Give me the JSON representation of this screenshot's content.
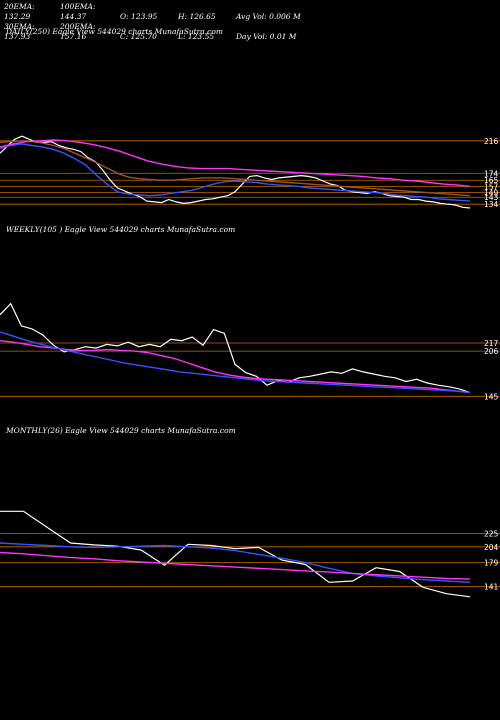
{
  "stats": {
    "ema20": "20EMA: 132.29",
    "ema100": "100EMA: 144.37",
    "open": "O: 123.95",
    "high": "H: 126.65",
    "avg_vol": "Avg Vol: 0.006  M",
    "ema30": "30EMA: 137.93",
    "ema200": "200EMA: 157.16",
    "close": "C: 125.70",
    "low": "L: 123.55",
    "day_vol": "Day Vol: 0.01  M"
  },
  "colors": {
    "background": "#000000",
    "price": "#ffffff",
    "ema_blue": "#3355ff",
    "ema_magenta": "#ff33ff",
    "ema_brown": "#a0522d",
    "level_line": "#cc6600"
  },
  "chart_data": [
    {
      "type": "line",
      "title": "DAILY(250) Eagle  View  544029 charts MunafaSutra.com",
      "levels": [
        216,
        174,
        165,
        157,
        149,
        143,
        134
      ],
      "level_labels": [
        "216",
        "174",
        "165",
        "157",
        "149",
        "143",
        "134"
      ],
      "series": [
        {
          "values": [
            200,
            209,
            218,
            222,
            218,
            214,
            214,
            215,
            210,
            207,
            205,
            202,
            194,
            189,
            178,
            165,
            155,
            151,
            147,
            144,
            138,
            137,
            136,
            140,
            137,
            135,
            136,
            138,
            140,
            141,
            143,
            145,
            150,
            160,
            170,
            171,
            168,
            166,
            168,
            169,
            170,
            171,
            170,
            168,
            164,
            160,
            158,
            152,
            150,
            149,
            148,
            150,
            148,
            145,
            144,
            143,
            140,
            140,
            138,
            137,
            135,
            134,
            133,
            130,
            129
          ]
        },
        {
          "values": [
            206,
            210,
            212,
            210,
            208,
            205,
            200,
            193,
            185,
            172,
            160,
            150,
            147,
            146,
            145,
            146,
            148,
            150,
            152,
            156,
            160,
            163,
            164,
            163,
            162,
            160,
            159,
            158,
            157,
            155,
            154,
            153,
            152,
            151,
            150,
            149,
            148,
            146,
            145,
            144,
            143,
            141,
            140,
            139,
            138
          ]
        },
        {
          "values": [
            214,
            215,
            216,
            215,
            213,
            210,
            206,
            200,
            194,
            188,
            181,
            174,
            169,
            167,
            166,
            165,
            165,
            166,
            167,
            168,
            168,
            168,
            167,
            166,
            165,
            164,
            163,
            162,
            161,
            160,
            159,
            158,
            157,
            156,
            155,
            154,
            153,
            152,
            151,
            150,
            149,
            148,
            147,
            146,
            145
          ]
        },
        {
          "values": [
            208,
            212,
            215,
            216,
            217,
            216,
            214,
            211,
            207,
            202,
            196,
            190,
            186,
            183,
            181,
            180,
            180,
            180,
            179,
            178,
            177,
            176,
            175,
            174,
            173,
            172,
            171,
            170,
            168,
            167,
            165,
            164,
            162,
            160,
            159,
            157
          ]
        }
      ]
    },
    {
      "type": "line",
      "title": "WEEKLY(105            ) Eagle  View  544029 charts MunafaSutra.com",
      "levels": [
        217,
        206,
        145
      ],
      "level_labels": [
        "217",
        "206",
        "145"
      ],
      "series": [
        {
          "values": [
            255,
            270,
            240,
            236,
            228,
            214,
            205,
            208,
            212,
            210,
            215,
            213,
            218,
            212,
            215,
            212,
            222,
            220,
            225,
            214,
            235,
            230,
            188,
            177,
            172,
            160,
            166,
            164,
            170,
            172,
            175,
            178,
            176,
            182,
            178,
            175,
            172,
            170,
            165,
            168,
            163,
            160,
            158,
            155,
            150
          ]
        },
        {
          "values": [
            220,
            218,
            215,
            212,
            210,
            208,
            207,
            207,
            208,
            207,
            206,
            204,
            200,
            196,
            190,
            184,
            178,
            174,
            171,
            169,
            168,
            167,
            166,
            165,
            164,
            163,
            162,
            161,
            160,
            159,
            158,
            157,
            156,
            154,
            152,
            150
          ]
        },
        {
          "values": [
            232,
            226,
            220,
            215,
            210,
            206,
            202,
            198,
            194,
            190,
            187,
            184,
            181,
            178,
            176,
            174,
            172,
            170,
            168,
            166,
            165,
            164,
            163,
            162,
            161,
            160,
            159,
            158,
            157,
            156,
            155,
            154,
            153,
            152,
            150
          ]
        }
      ]
    },
    {
      "type": "line",
      "title": "MONTHLY(26) Eagle  View  544029 charts MunafaSutra.com",
      "levels": [
        225,
        204,
        179,
        141
      ],
      "level_labels": [
        "225",
        "204",
        "179",
        "141"
      ],
      "series": [
        {
          "values": [
            260,
            260,
            235,
            210,
            207,
            205,
            199,
            175,
            208,
            206,
            201,
            203,
            183,
            176,
            148,
            150,
            171,
            165,
            140,
            130,
            125
          ]
        },
        {
          "values": [
            210,
            208,
            206,
            204,
            203,
            204,
            205,
            206,
            204,
            202,
            198,
            192,
            186,
            179,
            170,
            162,
            158,
            155,
            152,
            150,
            148
          ]
        },
        {
          "values": [
            195,
            193,
            190,
            187,
            185,
            182,
            180,
            178,
            176,
            174,
            172,
            170,
            168,
            166,
            164,
            162,
            160,
            158,
            156,
            154,
            153
          ]
        }
      ]
    }
  ]
}
